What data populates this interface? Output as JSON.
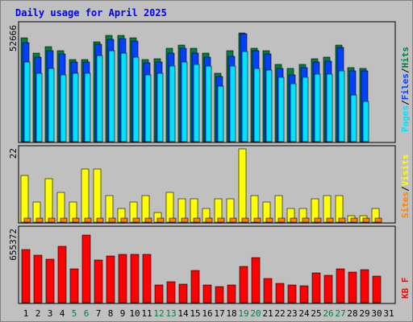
{
  "title": "Daily usage for April 2025",
  "colors": {
    "hits": "#008040",
    "files": "#0040ff",
    "pages": "#00e0ff",
    "visits": "#ffff00",
    "sites": "#ff8000",
    "kbytes": "#ff0000",
    "weekend": "#008040",
    "weekday": "#000000",
    "title": "#0000ff",
    "background": "#c0c0c0",
    "plot": "#c0c0c0"
  },
  "legend": {
    "top": {
      "pages": "Pages",
      "files": "Files",
      "hits": "Hits",
      "sep": "/"
    },
    "middle": {
      "sites": "Sites",
      "visits": "Visits",
      "sep": "/"
    },
    "bottom": {
      "kbytes": "KB F"
    }
  },
  "chart_data": [
    {
      "type": "bar",
      "title": "Daily usage for April 2025",
      "max_label": "52666",
      "ylim": [
        0,
        52666
      ],
      "categories": [
        "1",
        "2",
        "3",
        "4",
        "5",
        "6",
        "7",
        "8",
        "9",
        "10",
        "11",
        "12",
        "13",
        "14",
        "15",
        "16",
        "17",
        "18",
        "19",
        "20",
        "21",
        "22",
        "23",
        "24",
        "25",
        "26",
        "27",
        "28",
        "29",
        "30",
        "31"
      ],
      "weekend_days": [
        "5",
        "6",
        "12",
        "13",
        "19",
        "20",
        "26",
        "27"
      ],
      "series": [
        {
          "name": "Hits",
          "values": [
            47000,
            40000,
            43000,
            41000,
            37000,
            37000,
            45000,
            48000,
            48000,
            47000,
            37000,
            37500,
            42000,
            43500,
            42000,
            40000,
            31000,
            41000,
            49000,
            42000,
            41000,
            35000,
            33000,
            35000,
            37500,
            38000,
            43500,
            33500,
            33000,
            0,
            0
          ]
        },
        {
          "name": "Files",
          "values": [
            44500,
            38000,
            41000,
            39500,
            36000,
            36000,
            44000,
            46000,
            46500,
            45500,
            35500,
            36000,
            40000,
            42000,
            40000,
            38000,
            29500,
            38500,
            48500,
            41000,
            39500,
            33000,
            30000,
            33500,
            36000,
            36500,
            42500,
            32000,
            32000,
            0,
            0
          ]
        },
        {
          "name": "Pages",
          "values": [
            36000,
            31000,
            33000,
            30000,
            31000,
            31000,
            39000,
            41000,
            40000,
            38000,
            30000,
            31000,
            34000,
            36000,
            35000,
            34000,
            25000,
            34000,
            40500,
            33000,
            32500,
            29000,
            26000,
            29000,
            30500,
            30500,
            32000,
            21000,
            18000,
            0,
            0
          ]
        }
      ]
    },
    {
      "type": "bar",
      "max_label": "22",
      "ylim": [
        0,
        22
      ],
      "categories": [
        "1",
        "2",
        "3",
        "4",
        "5",
        "6",
        "7",
        "8",
        "9",
        "10",
        "11",
        "12",
        "13",
        "14",
        "15",
        "16",
        "17",
        "18",
        "19",
        "20",
        "21",
        "22",
        "23",
        "24",
        "25",
        "26",
        "27",
        "28",
        "29",
        "30",
        "31"
      ],
      "series": [
        {
          "name": "Visits",
          "values": [
            14,
            6,
            13,
            9,
            6,
            16,
            16,
            8,
            4,
            6,
            8,
            3,
            9,
            7,
            7,
            4,
            7,
            7,
            22,
            8,
            6,
            8,
            4,
            4,
            7,
            8,
            8,
            2,
            2,
            4,
            0
          ]
        },
        {
          "name": "Sites",
          "values": [
            1,
            1,
            1,
            1,
            1,
            1,
            1,
            1,
            1,
            1,
            1,
            1,
            1,
            1,
            1,
            1,
            1,
            1,
            1,
            1,
            1,
            1,
            1,
            1,
            1,
            1,
            1,
            1,
            1,
            1,
            0
          ]
        }
      ]
    },
    {
      "type": "bar",
      "max_label": "655372",
      "ylim": [
        0,
        655372
      ],
      "categories": [
        "1",
        "2",
        "3",
        "4",
        "5",
        "6",
        "7",
        "8",
        "9",
        "10",
        "11",
        "12",
        "13",
        "14",
        "15",
        "16",
        "17",
        "18",
        "19",
        "20",
        "21",
        "22",
        "23",
        "24",
        "25",
        "26",
        "27",
        "28",
        "29",
        "30",
        "31"
      ],
      "series": [
        {
          "name": "KBytes",
          "values": [
            475000,
            425000,
            390000,
            505000,
            305000,
            605000,
            385000,
            415000,
            430000,
            430000,
            435000,
            155000,
            190000,
            165000,
            285000,
            160000,
            145000,
            155000,
            325000,
            405000,
            215000,
            170000,
            160000,
            150000,
            270000,
            245000,
            305000,
            275000,
            295000,
            240000,
            0
          ]
        }
      ]
    }
  ]
}
